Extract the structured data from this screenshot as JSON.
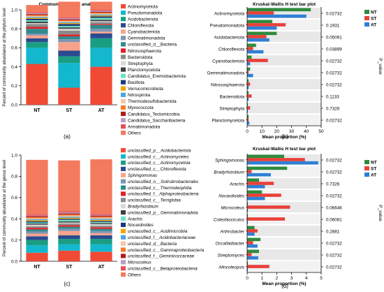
{
  "panel_labels": [
    "(a)",
    "(b)",
    "(c)",
    "(d)"
  ],
  "groups": [
    "NT",
    "ST",
    "AT"
  ],
  "group_colors": {
    "NT": "#2e8b3d",
    "ST": "#e8413a",
    "AT": "#2f7fd6"
  },
  "chart_data": [
    {
      "type": "bar",
      "stacked": true,
      "title": "Community barplot analysis",
      "ylabel": "Percent of community abundance at the phylum level",
      "categories": [
        "NT",
        "ST",
        "AT"
      ],
      "ylim": [
        0,
        1
      ],
      "yticks": [
        "0.0",
        "0.2",
        "0.4",
        "0.6",
        "0.8",
        "1.0"
      ],
      "series": [
        {
          "name": "Actinomycetota",
          "color": "#f04a35",
          "values": [
            0.43,
            0.18,
            0.4
          ]
        },
        {
          "name": "Pseudomonadota",
          "color": "#13b7ce",
          "values": [
            0.17,
            0.26,
            0.2
          ]
        },
        {
          "name": "Acidobacteriota",
          "color": "#1a9e82",
          "values": [
            0.06,
            0.07,
            0.1
          ]
        },
        {
          "name": "Chloroflexota",
          "color": "#2b4a8f",
          "values": [
            0.04,
            0.06,
            0.05
          ]
        },
        {
          "name": "Cyanobacteriota",
          "color": "#f7a38c",
          "values": [
            0.03,
            0.09,
            0.02
          ]
        },
        {
          "name": "Gemmatimonadota",
          "color": "#7d95b3",
          "values": [
            0.02,
            0.03,
            0.03
          ]
        },
        {
          "name": "unclassified_d__Bacteria",
          "color": "#2f8a8c",
          "values": [
            0.05,
            0.03,
            0.04
          ]
        },
        {
          "name": "Nitrososphaerota",
          "color": "#e01f27",
          "values": [
            0.02,
            0.02,
            0.01
          ]
        },
        {
          "name": "Bacteroidota",
          "color": "#8a8a8a",
          "values": [
            0.03,
            0.04,
            0.02
          ]
        },
        {
          "name": "Streptophyta",
          "color": "#d8d8d8",
          "values": [
            0.01,
            0.02,
            0.01
          ]
        },
        {
          "name": "Planctomycetota",
          "color": "#3f3f3f",
          "values": [
            0.015,
            0.015,
            0.015
          ]
        },
        {
          "name": "Candidatus_Eremiobacteriota",
          "color": "#6fe0c3",
          "values": [
            0.015,
            0.015,
            0.02
          ]
        },
        {
          "name": "Bacillota",
          "color": "#1a3a7a",
          "values": [
            0.015,
            0.02,
            0.015
          ]
        },
        {
          "name": "Verrucomicrobiota",
          "color": "#f5a300",
          "values": [
            0.01,
            0.01,
            0.01
          ]
        },
        {
          "name": "Nitrospirota",
          "color": "#4aa6d8",
          "values": [
            0.01,
            0.01,
            0.01
          ]
        },
        {
          "name": "Thermodesulfobacteriota",
          "color": "#f3c6ad",
          "values": [
            0.01,
            0.01,
            0.01
          ]
        },
        {
          "name": "Myxococcota",
          "color": "#f47b29",
          "values": [
            0.01,
            0.01,
            0.01
          ]
        },
        {
          "name": "Candidatus_Tectomicrobia",
          "color": "#b01c1c",
          "values": [
            0.01,
            0.01,
            0.01
          ]
        },
        {
          "name": "Candidatus_Saccharibacteria",
          "color": "#b89fc4",
          "values": [
            0.01,
            0.01,
            0.01
          ]
        },
        {
          "name": "Armatimonadota",
          "color": "#e54e5c",
          "values": [
            0.01,
            0.01,
            0.01
          ]
        },
        {
          "name": "Others",
          "color": "#f47a5e",
          "values": [
            0.075,
            0.165,
            0.085
          ]
        }
      ]
    },
    {
      "type": "bar",
      "orientation": "horizontal",
      "title": "Kruskal-Wallis H test bar plot",
      "xlabel": "Mean proportion (%)",
      "pvalue_label": "P_value",
      "xlim": [
        0,
        50
      ],
      "xticks": [
        "0",
        "10",
        "20",
        "30",
        "40",
        "50"
      ],
      "categories": [
        "Actinomycetota",
        "Pseudomonadota",
        "Acidobacteriota",
        "Chloroflexota",
        "Cyanobacteriota",
        "Gemmatimonadota",
        "Nitrososphaerota",
        "Bacteroidota",
        "Streptophyta",
        "Planctomycetota"
      ],
      "series": [
        {
          "name": "NT",
          "values": [
            43,
            17,
            20,
            6,
            3,
            2,
            1,
            1,
            0.5,
            1
          ]
        },
        {
          "name": "ST",
          "values": [
            18,
            26,
            13,
            4,
            14,
            1,
            2,
            3,
            2,
            1
          ]
        },
        {
          "name": "AT",
          "values": [
            40,
            20,
            15,
            11,
            2,
            4,
            1,
            1,
            0.5,
            1.5
          ]
        }
      ],
      "pvalues": [
        "0.02732",
        "0.1931",
        "0.05091",
        "0.03899",
        "0.02732",
        "0.02732",
        "0.02732",
        "0.1133",
        "0.7326",
        "0.02732"
      ]
    },
    {
      "type": "bar",
      "stacked": true,
      "ylabel": "Percent of community abundance at the genus level",
      "categories": [
        "NT",
        "ST",
        "AT"
      ],
      "ylim": [
        0,
        1
      ],
      "yticks": [
        "0.0",
        "0.2",
        "0.4",
        "0.6",
        "0.8",
        "1.0"
      ],
      "series": [
        {
          "name": "unclassified_p__Acidobacteriota",
          "color": "#f04a35",
          "values": [
            0.08,
            0.1,
            0.09
          ]
        },
        {
          "name": "unclassified_c__Actinomycetes",
          "color": "#13b7ce",
          "values": [
            0.07,
            0.06,
            0.07
          ]
        },
        {
          "name": "unclassified_c__Actinomycetota",
          "color": "#1a9e82",
          "values": [
            0.05,
            0.05,
            0.05
          ]
        },
        {
          "name": "unclassified_c__Chloroflexota",
          "color": "#2b4a8f",
          "values": [
            0.035,
            0.035,
            0.035
          ]
        },
        {
          "name": "Sphingomonas",
          "color": "#f7a38c",
          "values": [
            0.025,
            0.04,
            0.02
          ]
        },
        {
          "name": "unclassified_o__Solirubrobacterales",
          "color": "#7d95b3",
          "values": [
            0.02,
            0.02,
            0.02
          ]
        },
        {
          "name": "unclassified_c__Thermoleophilia",
          "color": "#2f8a8c",
          "values": [
            0.02,
            0.02,
            0.02
          ]
        },
        {
          "name": "unclassified_f__Alphaproteobacteria",
          "color": "#e01f27",
          "values": [
            0.015,
            0.015,
            0.015
          ]
        },
        {
          "name": "unclassified_c__Terriglobia",
          "color": "#8a8a8a",
          "values": [
            0.015,
            0.015,
            0.015
          ]
        },
        {
          "name": "Bradyrhizobium",
          "color": "#d8d8d8",
          "values": [
            0.015,
            0.01,
            0.015
          ]
        },
        {
          "name": "unclassified_p__Gemmatimonadota",
          "color": "#3f3f3f",
          "values": [
            0.01,
            0.01,
            0.01
          ]
        },
        {
          "name": "Arachis",
          "color": "#6fe0c3",
          "values": [
            0.01,
            0.015,
            0.01
          ]
        },
        {
          "name": "Nocardioides",
          "color": "#1a3a7a",
          "values": [
            0.01,
            0.01,
            0.01
          ]
        },
        {
          "name": "unclassified_c__Acidimicrobiia",
          "color": "#f5a300",
          "values": [
            0.01,
            0.01,
            0.01
          ]
        },
        {
          "name": "unclassified_f__Acidobacteriaceae",
          "color": "#4aa6d8",
          "values": [
            0.01,
            0.01,
            0.01
          ]
        },
        {
          "name": "unclassified_d__Bacteria",
          "color": "#f3c6ad",
          "values": [
            0.01,
            0.01,
            0.01
          ]
        },
        {
          "name": "unclassified_c__Gammaproteobacteria",
          "color": "#f47b29",
          "values": [
            0.01,
            0.01,
            0.01
          ]
        },
        {
          "name": "unclassified_f__Geminicoccaceae",
          "color": "#b01c1c",
          "values": [
            0.01,
            0.01,
            0.01
          ]
        },
        {
          "name": "Microcoleus",
          "color": "#b89fc4",
          "values": [
            0.005,
            0.01,
            0.005
          ]
        },
        {
          "name": "unclassified_c__Betaproteobacteria",
          "color": "#e54e5c",
          "values": [
            0.01,
            0.01,
            0.01
          ]
        },
        {
          "name": "Others",
          "color": "#f47a5e",
          "values": [
            0.515,
            0.48,
            0.515
          ]
        }
      ]
    },
    {
      "type": "bar",
      "orientation": "horizontal",
      "title": "Kruskal-Wallis H test bar plot",
      "xlabel": "Mean proportion (%)",
      "pvalue_label": "P_value",
      "xlim": [
        0,
        5
      ],
      "xticks": [
        "0",
        "1",
        "2",
        "3",
        "4",
        "5"
      ],
      "categories": [
        "Sphingomonas",
        "Bradyrhizobium",
        "Arachis",
        "Nocardioides",
        "Microcoleus",
        "Coleofasciculus",
        "Arthrobacter",
        "Occallatibacter",
        "Streptomyces",
        "Allocoleopsis"
      ],
      "series": [
        {
          "name": "NT",
          "values": [
            2.5,
            2.7,
            0.8,
            1.0,
            0.05,
            0.05,
            0.5,
            0.9,
            0.8,
            0.05
          ]
        },
        {
          "name": "ST",
          "values": [
            3.9,
            0.3,
            1.8,
            2.3,
            2.9,
            2.55,
            0.7,
            0.4,
            0.3,
            1.5
          ]
        },
        {
          "name": "AT",
          "values": [
            4.8,
            1.6,
            1.2,
            1.2,
            0.05,
            0.05,
            0.5,
            0.7,
            0.75,
            0.05
          ]
        }
      ],
      "pvalues": [
        "0.02732",
        "0.02732",
        "0.7326",
        "0.02732",
        "0.06646",
        "0.06081",
        "0.2881",
        "0.02732",
        "0.02732",
        "0.02732"
      ]
    }
  ]
}
